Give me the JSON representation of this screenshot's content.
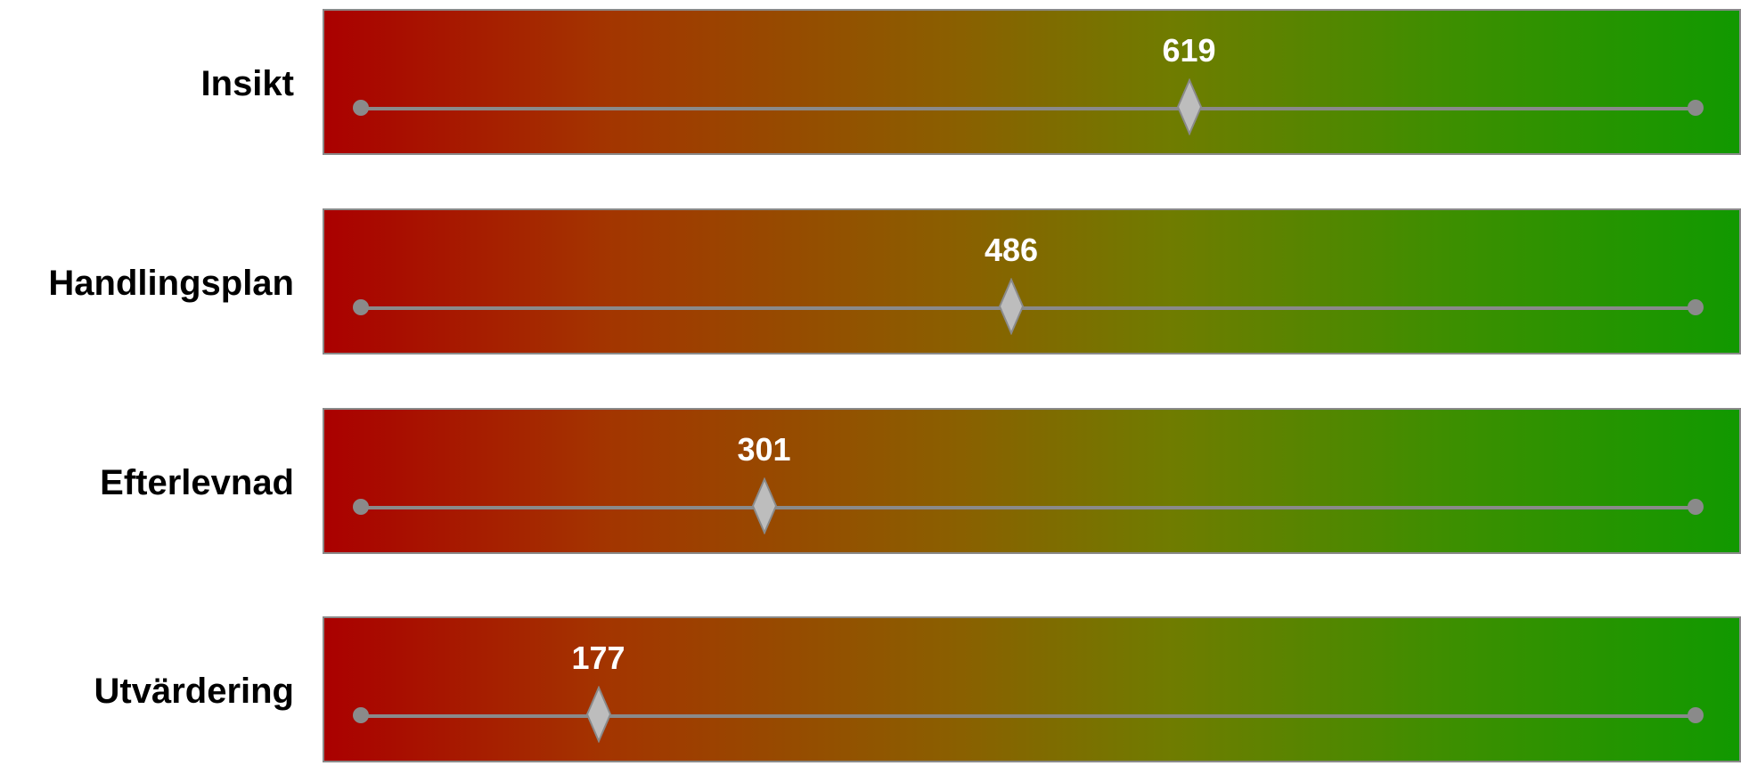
{
  "scale": {
    "min": 0,
    "max": 1000
  },
  "sliders": [
    {
      "label": "Insikt",
      "value": 619,
      "value_text": "619"
    },
    {
      "label": "Handlingsplan",
      "value": 486,
      "value_text": "486"
    },
    {
      "label": "Efterlevnad",
      "value": 301,
      "value_text": "301"
    },
    {
      "label": "Utvärdering",
      "value": 177,
      "value_text": "177"
    }
  ],
  "colors": {
    "gradient_start": "#aa0000",
    "gradient_end": "#119900",
    "track": "#8a8a8a",
    "thumb_fill": "#bdbdbd",
    "value_text": "#ffffff"
  },
  "icons": {
    "thumb": "diamond-thumb-icon",
    "track_end": "circle-dot-icon"
  }
}
